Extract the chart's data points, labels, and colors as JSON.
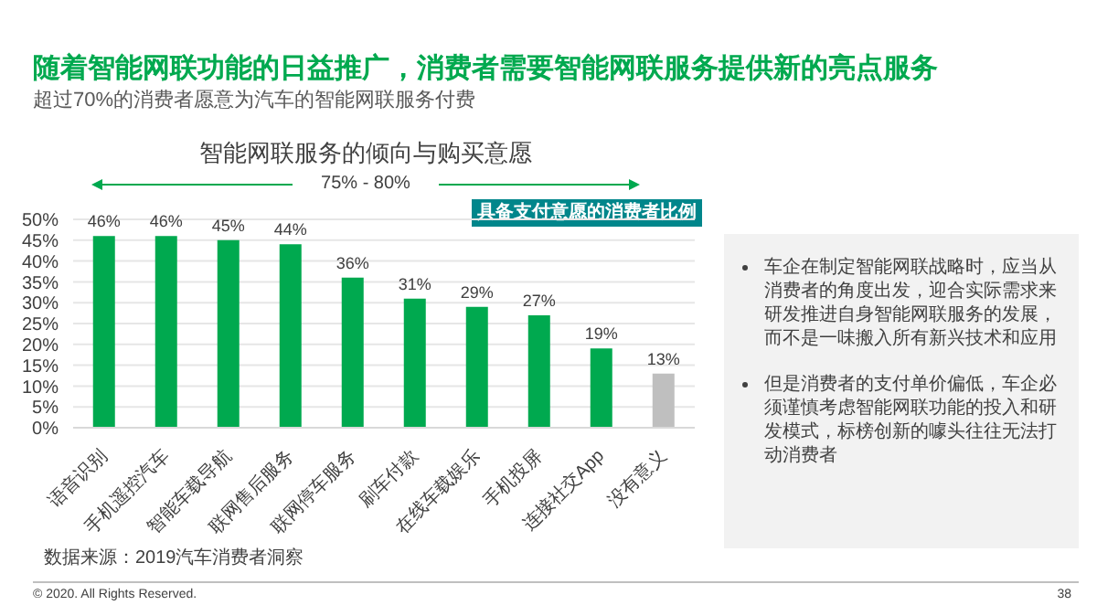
{
  "chart_data": {
    "type": "bar",
    "title": "随着智能网联功能的日益推广，消费者需要智能网联服务提供新的亮点服务",
    "subtitle": "超过70%的消费者愿意为汽车的智能网联服务付费",
    "annotations": [
      "智能网联服务的倾向与购买意愿",
      "75% - 80%",
      "具备支付意愿的消费者比例",
      "车企在制定智能网联战略时，应当从消费者的角度出发，迎合实际需求来研发推进自身智能网联服务的发展，而不是一味搬入所有新兴技术和应用",
      "但是消费者的支付单价偏低，车企必须谨慎考虑智能网联功能的投入和研发模式，标榜创新的噱头往往无法打动消费者",
      "数据来源：2019汽车消费者洞察",
      "© 2020. All Rights Reserved.",
      "38"
    ],
    "categories": [
      "语音识别",
      "手机遥控汽车",
      "智能车载导航",
      "联网售后服务",
      "联网停车服务",
      "刷车付款",
      "在线车载娱乐",
      "手机投屏",
      "连接社交App",
      "没有意义"
    ],
    "values": [
      46,
      46,
      45,
      44,
      36,
      31,
      29,
      27,
      19,
      13
    ],
    "colors": [
      "#00a94f",
      "#00a94f",
      "#00a94f",
      "#00a94f",
      "#00a94f",
      "#00a94f",
      "#00a94f",
      "#00a94f",
      "#00a94f",
      "#bfbfbf"
    ],
    "value_labels": [
      "46%",
      "46%",
      "45%",
      "44%",
      "36%",
      "31%",
      "29%",
      "27%",
      "19%",
      "13%"
    ],
    "ylim": [
      0,
      50
    ],
    "yticks": [
      {
        "value": 0,
        "label": "0%"
      },
      {
        "value": 5,
        "label": "5%"
      },
      {
        "value": 10,
        "label": "10%"
      },
      {
        "value": 15,
        "label": "15%"
      },
      {
        "value": 20,
        "label": "20%"
      },
      {
        "value": 25,
        "label": "25%"
      },
      {
        "value": 30,
        "label": "30%"
      },
      {
        "value": 35,
        "label": "35%"
      },
      {
        "value": 40,
        "label": "40%"
      },
      {
        "value": 45,
        "label": "45%"
      },
      {
        "value": 50,
        "label": "50%"
      }
    ],
    "grid": "y",
    "legend": false
  }
}
